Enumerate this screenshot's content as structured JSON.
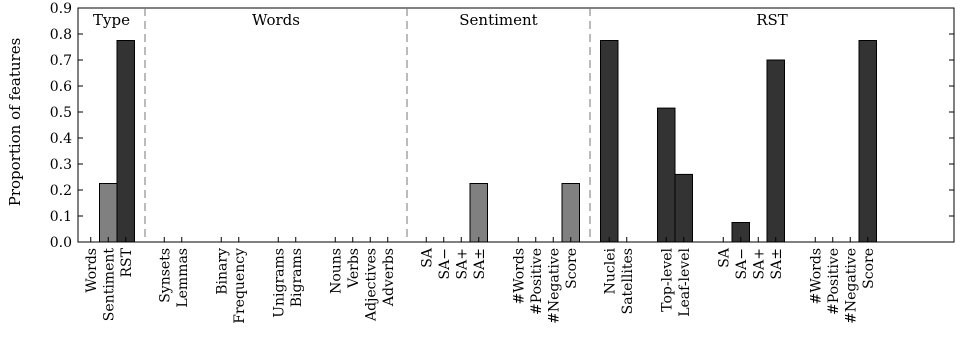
{
  "chart_data": {
    "type": "bar",
    "ylabel": "Proportion of features",
    "ylim": [
      0,
      0.9
    ],
    "yticks": [
      "0.0",
      "0.1",
      "0.2",
      "0.3",
      "0.4",
      "0.5",
      "0.6",
      "0.7",
      "0.8",
      "0.9"
    ],
    "grid": false,
    "bar_colors": {
      "dark": "#333333",
      "medium": "#808080",
      "light": "#bdbdbd"
    },
    "sections": [
      {
        "name": "Type",
        "groups": [
          {
            "bars": [
              {
                "label": "Words",
                "value": 0.0,
                "color": "dark"
              },
              {
                "label": "Sentiment",
                "value": 0.225,
                "color": "medium"
              },
              {
                "label": "RST",
                "value": 0.775,
                "color": "dark"
              }
            ]
          }
        ]
      },
      {
        "name": "Words",
        "groups": [
          {
            "bars": [
              {
                "label": "Synsets",
                "value": 0.0,
                "color": "light"
              },
              {
                "label": "Lemmas",
                "value": 0.0,
                "color": "light"
              }
            ]
          },
          {
            "bars": [
              {
                "label": "Binary",
                "value": 0.0,
                "color": "light"
              },
              {
                "label": "Frequency",
                "value": 0.0,
                "color": "light"
              }
            ]
          },
          {
            "bars": [
              {
                "label": "Unigrams",
                "value": 0.0,
                "color": "light"
              },
              {
                "label": "Bigrams",
                "value": 0.0,
                "color": "light"
              }
            ]
          },
          {
            "bars": [
              {
                "label": "Nouns",
                "value": 0.0,
                "color": "light"
              },
              {
                "label": "Verbs",
                "value": 0.0,
                "color": "light"
              },
              {
                "label": "Adjectives",
                "value": 0.0,
                "color": "light"
              },
              {
                "label": "Adverbs",
                "value": 0.0,
                "color": "light"
              }
            ]
          }
        ]
      },
      {
        "name": "Sentiment",
        "groups": [
          {
            "bars": [
              {
                "label": "SA",
                "value": 0.0,
                "color": "medium"
              },
              {
                "label": "SA−",
                "value": 0.0,
                "color": "medium"
              },
              {
                "label": "SA+",
                "value": 0.0,
                "color": "medium"
              },
              {
                "label": "SA±",
                "value": 0.225,
                "color": "medium"
              }
            ]
          },
          {
            "bars": [
              {
                "label": "#Words",
                "value": 0.0,
                "color": "medium"
              },
              {
                "label": "#Positive",
                "value": 0.0,
                "color": "medium"
              },
              {
                "label": "#Negative",
                "value": 0.0,
                "color": "medium"
              },
              {
                "label": "Score",
                "value": 0.225,
                "color": "medium"
              }
            ]
          }
        ]
      },
      {
        "name": "RST",
        "groups": [
          {
            "bars": [
              {
                "label": "Nuclei",
                "value": 0.775,
                "color": "dark"
              },
              {
                "label": "Satellites",
                "value": 0.0,
                "color": "dark"
              }
            ]
          },
          {
            "bars": [
              {
                "label": "Top-level",
                "value": 0.515,
                "color": "dark"
              },
              {
                "label": "Leaf-level",
                "value": 0.26,
                "color": "dark"
              }
            ]
          },
          {
            "bars": [
              {
                "label": "SA",
                "value": 0.0,
                "color": "dark"
              },
              {
                "label": "SA−",
                "value": 0.075,
                "color": "dark"
              },
              {
                "label": "SA+",
                "value": 0.0,
                "color": "dark"
              },
              {
                "label": "SA±",
                "value": 0.7,
                "color": "dark"
              }
            ]
          },
          {
            "bars": [
              {
                "label": "#Words",
                "value": 0.0,
                "color": "dark"
              },
              {
                "label": "#Positive",
                "value": 0.0,
                "color": "dark"
              },
              {
                "label": "#Negative",
                "value": 0.0,
                "color": "dark"
              },
              {
                "label": "Score",
                "value": 0.775,
                "color": "dark"
              }
            ]
          }
        ]
      }
    ]
  }
}
